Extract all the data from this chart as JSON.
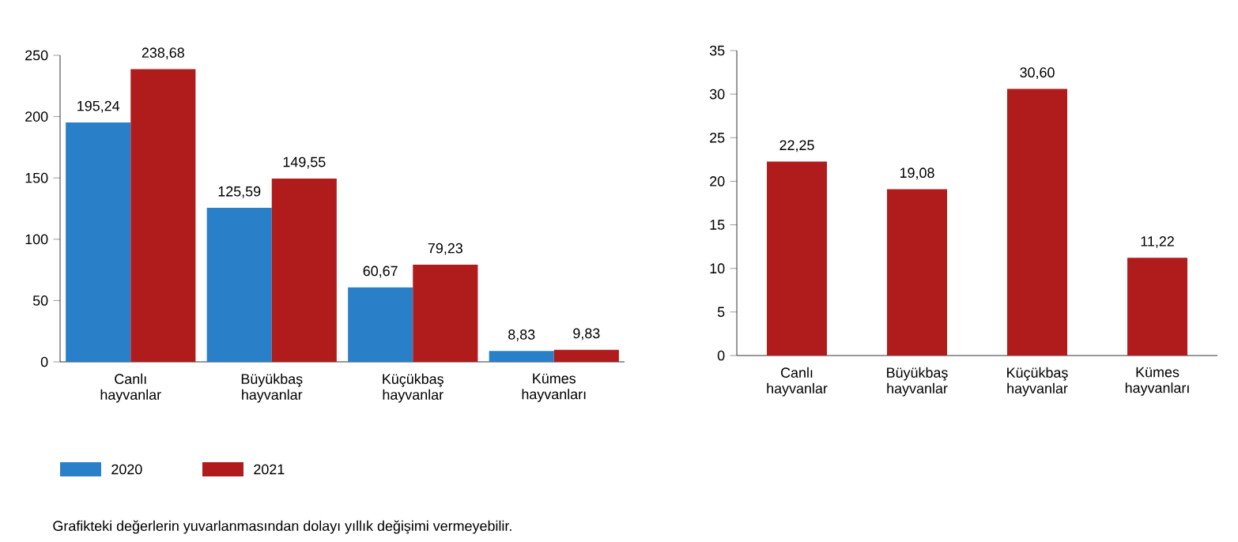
{
  "chart_data": [
    {
      "type": "bar",
      "categories": [
        "Canlı hayvanlar",
        "Büyükbaş hayvanlar",
        "Küçükbaş hayvanlar",
        "Kümes hayvanları"
      ],
      "series": [
        {
          "name": "2020",
          "color": "#2a7fc9",
          "values": [
            195.24,
            125.59,
            60.67,
            8.83
          ],
          "value_labels": [
            "195,24",
            "125,59",
            "60,67",
            "8,83"
          ]
        },
        {
          "name": "2021",
          "color": "#b01c1c",
          "values": [
            238.68,
            149.55,
            79.23,
            9.83
          ],
          "value_labels": [
            "238,68",
            "149,55",
            "79,23",
            "9,83"
          ]
        }
      ],
      "ylim": [
        0,
        250
      ],
      "yticks": [
        0,
        50,
        100,
        150,
        200,
        250
      ],
      "legend": "bottom left",
      "grid": false,
      "annotations": [
        "Grafikteki değerlerin yuvarlanmasından dolayı yıllık değişimi vermeyebilir."
      ]
    },
    {
      "type": "bar",
      "categories": [
        "Canlı hayvanlar",
        "Büyükbaş hayvanlar",
        "Küçükbaş hayvanlar",
        "Kümes hayvanları"
      ],
      "series": [
        {
          "color": "#b01c1c",
          "values": [
            22.25,
            19.08,
            30.6,
            11.22
          ],
          "value_labels": [
            "22,25",
            "19,08",
            "30,60",
            "11,22"
          ]
        }
      ],
      "ylim": [
        0,
        35
      ],
      "yticks": [
        0,
        5,
        10,
        15,
        20,
        25,
        30,
        35
      ],
      "grid": false
    }
  ]
}
